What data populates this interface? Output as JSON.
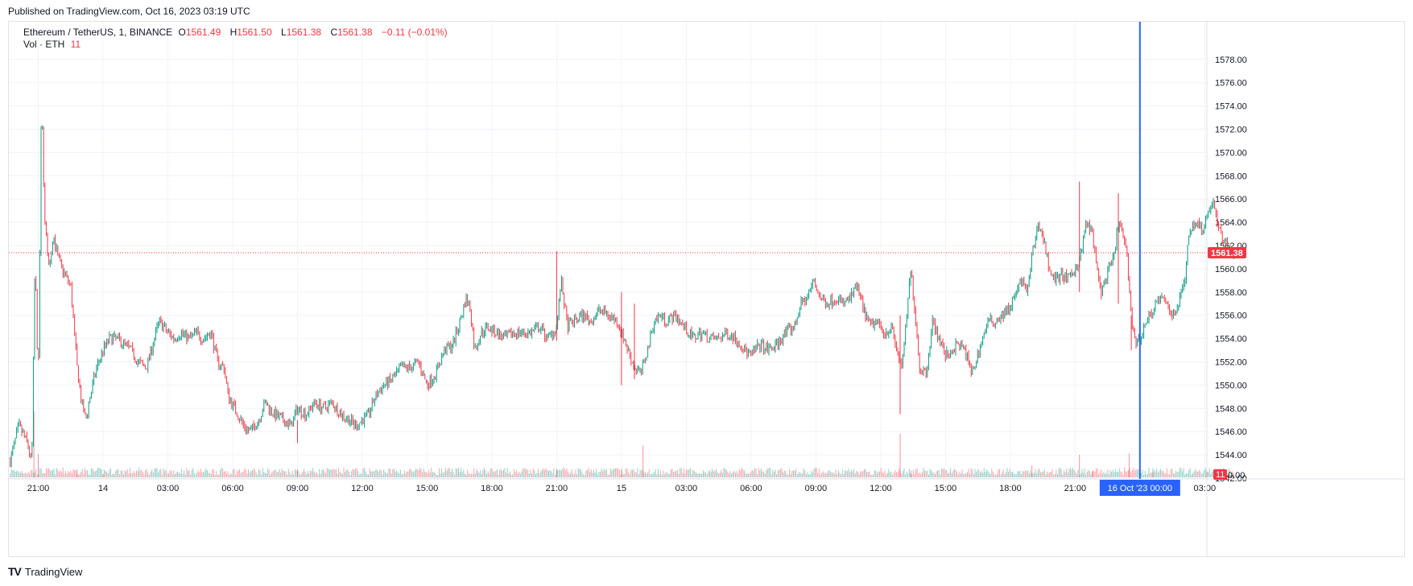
{
  "header": {
    "published": "Published on TradingView.com, Oct 16, 2023 03:19 UTC"
  },
  "legend": {
    "symbol": "Ethereum / TetherUS, 1, BINANCE",
    "open_label": "O",
    "open": "1561.49",
    "high_label": "H",
    "high": "1561.50",
    "low_label": "L",
    "low": "1561.38",
    "close_label": "C",
    "close": "1561.38",
    "change": "−0.11 (−0.01%)",
    "vol_label": "Vol · ETH",
    "vol_value": "11"
  },
  "footer": {
    "logo": "TV",
    "brand": "TradingView"
  },
  "colors": {
    "up": "#089981",
    "down": "#f23645",
    "crosshair": "#2962ff",
    "grid": "#f0f3fa"
  },
  "chart_data": {
    "type": "candlestick",
    "ylim": [
      1542.0,
      1579.0
    ],
    "y_ticks": [
      "1542.00",
      "1544.00",
      "1546.00",
      "1548.00",
      "1550.00",
      "1552.00",
      "1554.00",
      "1556.00",
      "1558.00",
      "1560.00",
      "1562.00",
      "1564.00",
      "1566.00",
      "1568.00",
      "1570.00",
      "1572.00",
      "1574.00",
      "1576.00",
      "1578.00"
    ],
    "x_ticks": [
      "21:00",
      "14",
      "03:00",
      "06:00",
      "09:00",
      "12:00",
      "15:00",
      "18:00",
      "21:00",
      "15",
      "03:00",
      "06:00",
      "09:00",
      "12:00",
      "15:00",
      "18:00",
      "21:00",
      "03:00"
    ],
    "x_tick_hours": [
      0,
      3,
      6,
      9,
      12,
      15,
      18,
      21,
      24,
      27,
      30,
      33,
      36,
      39,
      42,
      45,
      48,
      54
    ],
    "crosshair_label": "16 Oct '23   00:00",
    "crosshair_hour": 51,
    "last_price_label": "1561.38",
    "last_price": 1561.38,
    "volume_label": "11",
    "volume_axis_label": "0.00",
    "price_path": [
      [
        -1.3,
        1543.5
      ],
      [
        -0.9,
        1546.5
      ],
      [
        -0.5,
        1545.0
      ],
      [
        -0.3,
        1543.2
      ],
      [
        -0.15,
        1561.0
      ],
      [
        0.0,
        1550.0
      ],
      [
        0.1,
        1566.0
      ],
      [
        0.15,
        1575.0
      ],
      [
        0.3,
        1564.0
      ],
      [
        0.5,
        1560.0
      ],
      [
        0.7,
        1563.0
      ],
      [
        0.9,
        1561.0
      ],
      [
        1.1,
        1560.0
      ],
      [
        1.5,
        1558.5
      ],
      [
        1.8,
        1551.5
      ],
      [
        2.0,
        1548.5
      ],
      [
        2.2,
        1547.0
      ],
      [
        2.4,
        1549.0
      ],
      [
        2.7,
        1551.5
      ],
      [
        3.0,
        1553.0
      ],
      [
        3.3,
        1554.0
      ],
      [
        3.6,
        1554.0
      ],
      [
        4.0,
        1553.5
      ],
      [
        4.3,
        1553.0
      ],
      [
        4.6,
        1552.0
      ],
      [
        5.0,
        1551.5
      ],
      [
        5.3,
        1553.5
      ],
      [
        5.6,
        1555.5
      ],
      [
        6.0,
        1554.5
      ],
      [
        6.3,
        1554.0
      ],
      [
        6.6,
        1554.5
      ],
      [
        7.0,
        1554.0
      ],
      [
        7.3,
        1554.5
      ],
      [
        7.6,
        1554.0
      ],
      [
        8.0,
        1554.5
      ],
      [
        8.3,
        1552.0
      ],
      [
        8.6,
        1551.5
      ],
      [
        8.8,
        1549.0
      ],
      [
        9.1,
        1548.0
      ],
      [
        9.5,
        1546.5
      ],
      [
        9.8,
        1546.0
      ],
      [
        10.2,
        1547.0
      ],
      [
        10.5,
        1548.5
      ],
      [
        10.9,
        1547.5
      ],
      [
        11.3,
        1547.0
      ],
      [
        11.7,
        1546.5
      ],
      [
        12.0,
        1548.0
      ],
      [
        12.4,
        1547.5
      ],
      [
        12.8,
        1548.5
      ],
      [
        13.2,
        1548.0
      ],
      [
        13.6,
        1548.5
      ],
      [
        14.0,
        1547.5
      ],
      [
        14.4,
        1547.0
      ],
      [
        14.7,
        1546.5
      ],
      [
        15.0,
        1547.0
      ],
      [
        15.3,
        1547.5
      ],
      [
        15.6,
        1549.0
      ],
      [
        16.0,
        1550.0
      ],
      [
        16.4,
        1550.5
      ],
      [
        16.8,
        1551.5
      ],
      [
        17.2,
        1551.5
      ],
      [
        17.6,
        1552.0
      ],
      [
        18.0,
        1550.0
      ],
      [
        18.4,
        1551.0
      ],
      [
        18.8,
        1553.0
      ],
      [
        19.2,
        1553.5
      ],
      [
        19.6,
        1556.0
      ],
      [
        19.8,
        1557.5
      ],
      [
        20.0,
        1556.5
      ],
      [
        20.2,
        1553.0
      ],
      [
        20.5,
        1554.5
      ],
      [
        20.8,
        1555.0
      ],
      [
        21.2,
        1554.5
      ],
      [
        21.6,
        1554.0
      ],
      [
        22.0,
        1554.5
      ],
      [
        22.4,
        1554.5
      ],
      [
        22.8,
        1554.5
      ],
      [
        23.2,
        1555.0
      ],
      [
        23.6,
        1554.0
      ],
      [
        24.0,
        1555.0
      ],
      [
        24.2,
        1559.0
      ],
      [
        24.5,
        1555.0
      ],
      [
        24.8,
        1555.5
      ],
      [
        25.2,
        1556.0
      ],
      [
        25.6,
        1555.5
      ],
      [
        26.0,
        1556.5
      ],
      [
        26.4,
        1556.0
      ],
      [
        26.8,
        1555.5
      ],
      [
        27.0,
        1554.5
      ],
      [
        27.3,
        1553.0
      ],
      [
        27.6,
        1551.5
      ],
      [
        27.9,
        1551.0
      ],
      [
        28.2,
        1553.0
      ],
      [
        28.5,
        1555.5
      ],
      [
        28.8,
        1556.0
      ],
      [
        29.1,
        1555.5
      ],
      [
        29.5,
        1556.0
      ],
      [
        29.9,
        1555.0
      ],
      [
        30.3,
        1554.0
      ],
      [
        30.7,
        1554.5
      ],
      [
        31.1,
        1554.0
      ],
      [
        31.5,
        1554.0
      ],
      [
        31.9,
        1554.5
      ],
      [
        32.3,
        1554.0
      ],
      [
        32.7,
        1553.0
      ],
      [
        33.0,
        1552.5
      ],
      [
        33.4,
        1553.5
      ],
      [
        33.8,
        1553.0
      ],
      [
        34.2,
        1553.5
      ],
      [
        34.6,
        1554.5
      ],
      [
        35.0,
        1555.0
      ],
      [
        35.3,
        1557.0
      ],
      [
        35.6,
        1557.5
      ],
      [
        35.9,
        1559.0
      ],
      [
        36.2,
        1557.5
      ],
      [
        36.5,
        1557.0
      ],
      [
        36.9,
        1557.5
      ],
      [
        37.3,
        1557.0
      ],
      [
        37.6,
        1557.5
      ],
      [
        37.9,
        1558.5
      ],
      [
        38.2,
        1556.5
      ],
      [
        38.5,
        1555.0
      ],
      [
        38.8,
        1555.5
      ],
      [
        39.2,
        1554.5
      ],
      [
        39.5,
        1555.0
      ],
      [
        39.8,
        1552.5
      ],
      [
        40.0,
        1551.5
      ],
      [
        40.2,
        1556.0
      ],
      [
        40.4,
        1560.0
      ],
      [
        40.6,
        1556.0
      ],
      [
        40.8,
        1551.5
      ],
      [
        41.1,
        1551.0
      ],
      [
        41.4,
        1555.5
      ],
      [
        41.7,
        1554.0
      ],
      [
        42.0,
        1552.5
      ],
      [
        42.3,
        1553.0
      ],
      [
        42.6,
        1553.5
      ],
      [
        42.9,
        1553.0
      ],
      [
        43.2,
        1551.0
      ],
      [
        43.4,
        1552.0
      ],
      [
        43.7,
        1554.0
      ],
      [
        44.0,
        1555.5
      ],
      [
        44.3,
        1555.5
      ],
      [
        44.6,
        1556.0
      ],
      [
        44.9,
        1556.5
      ],
      [
        45.2,
        1557.5
      ],
      [
        45.5,
        1559.0
      ],
      [
        45.8,
        1558.0
      ],
      [
        46.0,
        1561.0
      ],
      [
        46.3,
        1564.0
      ],
      [
        46.6,
        1562.0
      ],
      [
        46.8,
        1560.0
      ],
      [
        47.1,
        1559.0
      ],
      [
        47.4,
        1559.5
      ],
      [
        47.7,
        1559.0
      ],
      [
        48.0,
        1560.0
      ],
      [
        48.3,
        1561.5
      ],
      [
        48.5,
        1564.0
      ],
      [
        48.8,
        1563.0
      ],
      [
        49.0,
        1560.0
      ],
      [
        49.2,
        1558.0
      ],
      [
        49.5,
        1559.5
      ],
      [
        49.8,
        1561.0
      ],
      [
        50.0,
        1564.0
      ],
      [
        50.2,
        1563.0
      ],
      [
        50.4,
        1561.0
      ],
      [
        50.6,
        1556.0
      ],
      [
        50.8,
        1553.5
      ],
      [
        51.0,
        1554.0
      ],
      [
        51.3,
        1555.5
      ],
      [
        51.6,
        1556.5
      ],
      [
        51.9,
        1557.5
      ],
      [
        52.2,
        1557.0
      ],
      [
        52.5,
        1556.0
      ],
      [
        52.8,
        1557.0
      ],
      [
        53.1,
        1559.5
      ],
      [
        53.3,
        1563.5
      ],
      [
        53.6,
        1564.0
      ],
      [
        53.9,
        1563.5
      ],
      [
        54.2,
        1565.0
      ],
      [
        54.4,
        1566.0
      ],
      [
        54.6,
        1563.5
      ],
      [
        54.9,
        1562.5
      ],
      [
        55.2,
        1561.5
      ],
      [
        55.4,
        1561.4
      ]
    ],
    "price_spikes": [
      [
        12.0,
        1547.0,
        1545.0
      ],
      [
        24.0,
        1561.5,
        1553.8
      ],
      [
        27.0,
        1558.0,
        1550.0
      ],
      [
        27.6,
        1557.0,
        1550.5
      ],
      [
        39.9,
        1556.0,
        1547.5
      ],
      [
        48.2,
        1567.5,
        1558.0
      ],
      [
        50.0,
        1566.5,
        1557.0
      ],
      [
        50.6,
        1556.0,
        1553.0
      ]
    ],
    "volume_spikes": [
      [
        -0.2,
        1.0
      ],
      [
        0.0,
        0.35
      ],
      [
        1.8,
        0.12
      ],
      [
        3.0,
        0.05
      ],
      [
        12.0,
        0.12
      ],
      [
        24.0,
        0.13
      ],
      [
        27.0,
        0.13
      ],
      [
        28.0,
        0.48
      ],
      [
        39.9,
        0.66
      ],
      [
        40.4,
        0.1
      ],
      [
        46.0,
        0.18
      ],
      [
        48.2,
        0.34
      ],
      [
        48.8,
        0.1
      ],
      [
        50.5,
        0.36
      ],
      [
        51.6,
        0.08
      ],
      [
        54.1,
        0.09
      ]
    ]
  }
}
